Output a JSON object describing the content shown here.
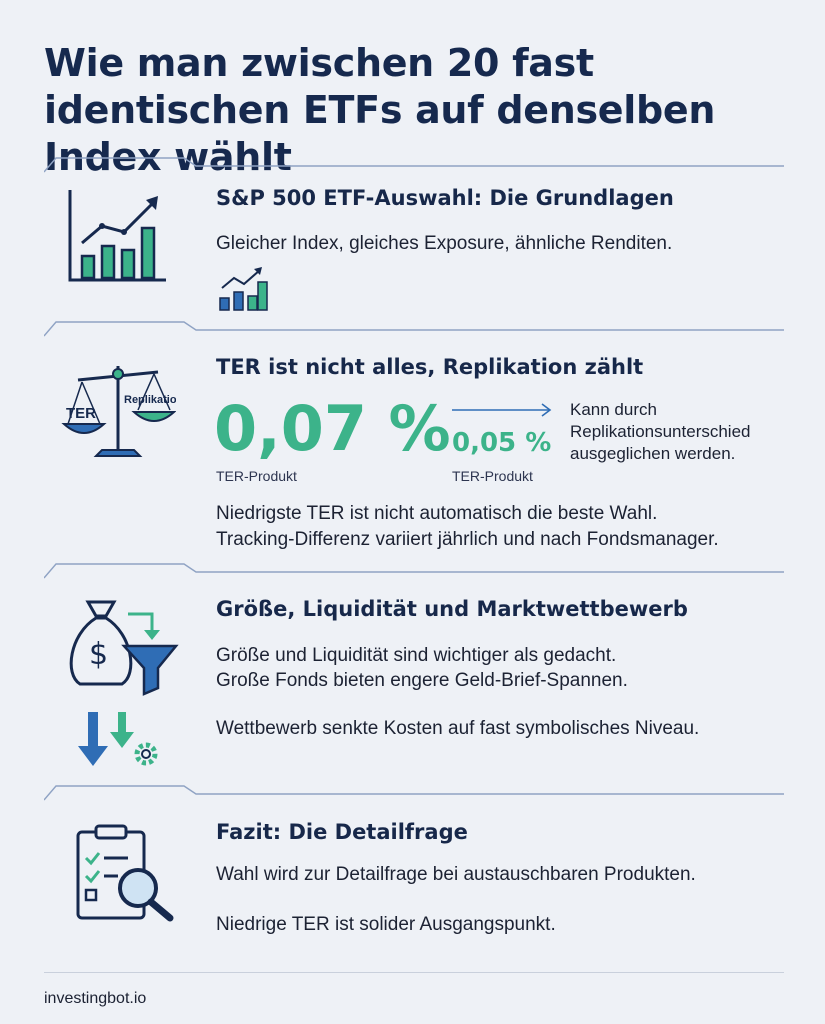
{
  "title": "Wie man zwischen 20 fast identischen ETFs auf denselben Index wählt",
  "colors": {
    "navy": "#16294e",
    "green": "#3cb38a",
    "blue": "#2f6db5",
    "line": "#8fa3c4"
  },
  "sections": [
    {
      "heading": "S&P 500 ETF-Auswahl: Die Grundlagen",
      "text1": "Gleicher Index, gleiches Exposure, ähnliche Renditen.",
      "icons": [
        "bar-chart-growth-icon",
        "small-bar-chart-icon"
      ]
    },
    {
      "heading": "TER ist nicht alles, Replikation zählt",
      "scale_left": "TER",
      "scale_right": "Replikation",
      "ter_value": "0,07 %",
      "ter_label": "TER-Produkt",
      "ter_value2": "0,05 %",
      "ter_label2": "TER-Produkt",
      "note": "Kann durch Replikationsunterschied ausgeglichen werden.",
      "text1": "Niedrigste TER ist nicht automatisch die beste Wahl.",
      "text2": "Tracking-Differenz variiert jährlich und nach Fondsmanager.",
      "icons": [
        "balance-scale-icon",
        "arrow-right-icon"
      ]
    },
    {
      "heading": "Größe, Liquidität und Marktwettbewerb",
      "text1": "Größe und Liquidität sind wichtiger als gedacht.",
      "text2": "Große Fonds bieten engere Geld-Brief-Spannen.",
      "text3": "Wettbewerb senkte Kosten auf fast symbolisches Niveau.",
      "icons": [
        "money-bag-funnel-icon",
        "down-arrows-gear-icon"
      ]
    },
    {
      "heading": "Fazit: Die Detailfrage",
      "text1": "Wahl wird zur Detailfrage bei austauschbaren Produkten.",
      "text2": "Niedrige TER ist solider Ausgangspunkt.",
      "icons": [
        "clipboard-magnifier-icon"
      ]
    }
  ],
  "footer": "investingbot.io"
}
